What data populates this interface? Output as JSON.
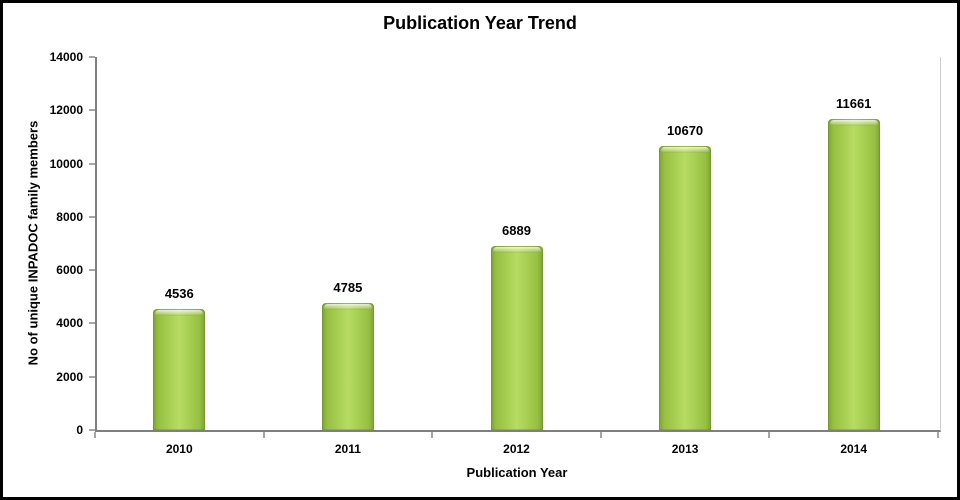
{
  "chart_data": {
    "type": "bar",
    "title": "Publication Year Trend",
    "xlabel": "Publication Year",
    "ylabel": "No of unique INPADOC family members",
    "categories": [
      "2010",
      "2011",
      "2012",
      "2013",
      "2014"
    ],
    "values": [
      4536,
      4785,
      6889,
      10670,
      11661
    ],
    "data_labels": [
      "4536",
      "4785",
      "6889",
      "10670",
      "11661"
    ],
    "ylim": [
      0,
      14000
    ],
    "y_ticks": [
      0,
      2000,
      4000,
      6000,
      8000,
      10000,
      12000,
      14000
    ],
    "grid": false,
    "legend": false,
    "colors": {
      "bar_highlight": "#B6DC62",
      "bar_main": "#9CC646",
      "bar_edge": "#7CA134",
      "axis_line": "#7F7F7F",
      "tick_mark": "#A6A6A6",
      "plot_right_border": "#CFCFCF",
      "text": "#000000",
      "background": "#FFFFFF",
      "frame_border": "#000000"
    }
  }
}
